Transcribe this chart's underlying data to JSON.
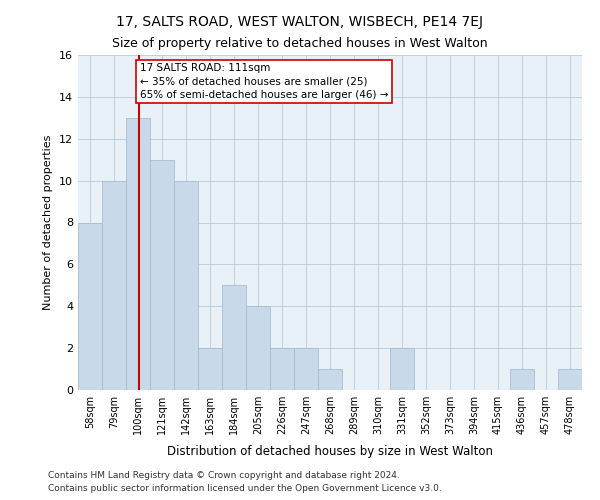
{
  "title": "17, SALTS ROAD, WEST WALTON, WISBECH, PE14 7EJ",
  "subtitle": "Size of property relative to detached houses in West Walton",
  "xlabel": "Distribution of detached houses by size in West Walton",
  "ylabel": "Number of detached properties",
  "bar_edges": [
    58,
    79,
    100,
    121,
    142,
    163,
    184,
    205,
    226,
    247,
    268,
    289,
    310,
    331,
    352,
    373,
    394,
    415,
    436,
    457,
    478
  ],
  "bar_heights": [
    8,
    10,
    13,
    11,
    10,
    2,
    5,
    4,
    2,
    2,
    1,
    0,
    0,
    2,
    0,
    0,
    0,
    0,
    1,
    0,
    1
  ],
  "bar_color": "#c8d9ea",
  "bar_edgecolor": "#aabbcc",
  "vline_x": 111,
  "vline_color": "#cc0000",
  "annotation_line1": "17 SALTS ROAD: 111sqm",
  "annotation_line2": "← 35% of detached houses are smaller (25)",
  "annotation_line3": "65% of semi-detached houses are larger (46) →",
  "annotation_boxcolor": "white",
  "annotation_edgecolor": "#cc0000",
  "ylim": [
    0,
    16
  ],
  "yticks": [
    0,
    2,
    4,
    6,
    8,
    10,
    12,
    14,
    16
  ],
  "grid_color": "#b8ccd8",
  "background_color": "#e8f0f8",
  "footer_line1": "Contains HM Land Registry data © Crown copyright and database right 2024.",
  "footer_line2": "Contains public sector information licensed under the Open Government Licence v3.0.",
  "tick_labels": [
    "58sqm",
    "79sqm",
    "100sqm",
    "121sqm",
    "142sqm",
    "163sqm",
    "184sqm",
    "205sqm",
    "226sqm",
    "247sqm",
    "268sqm",
    "289sqm",
    "310sqm",
    "331sqm",
    "352sqm",
    "373sqm",
    "394sqm",
    "415sqm",
    "436sqm",
    "457sqm",
    "478sqm"
  ]
}
